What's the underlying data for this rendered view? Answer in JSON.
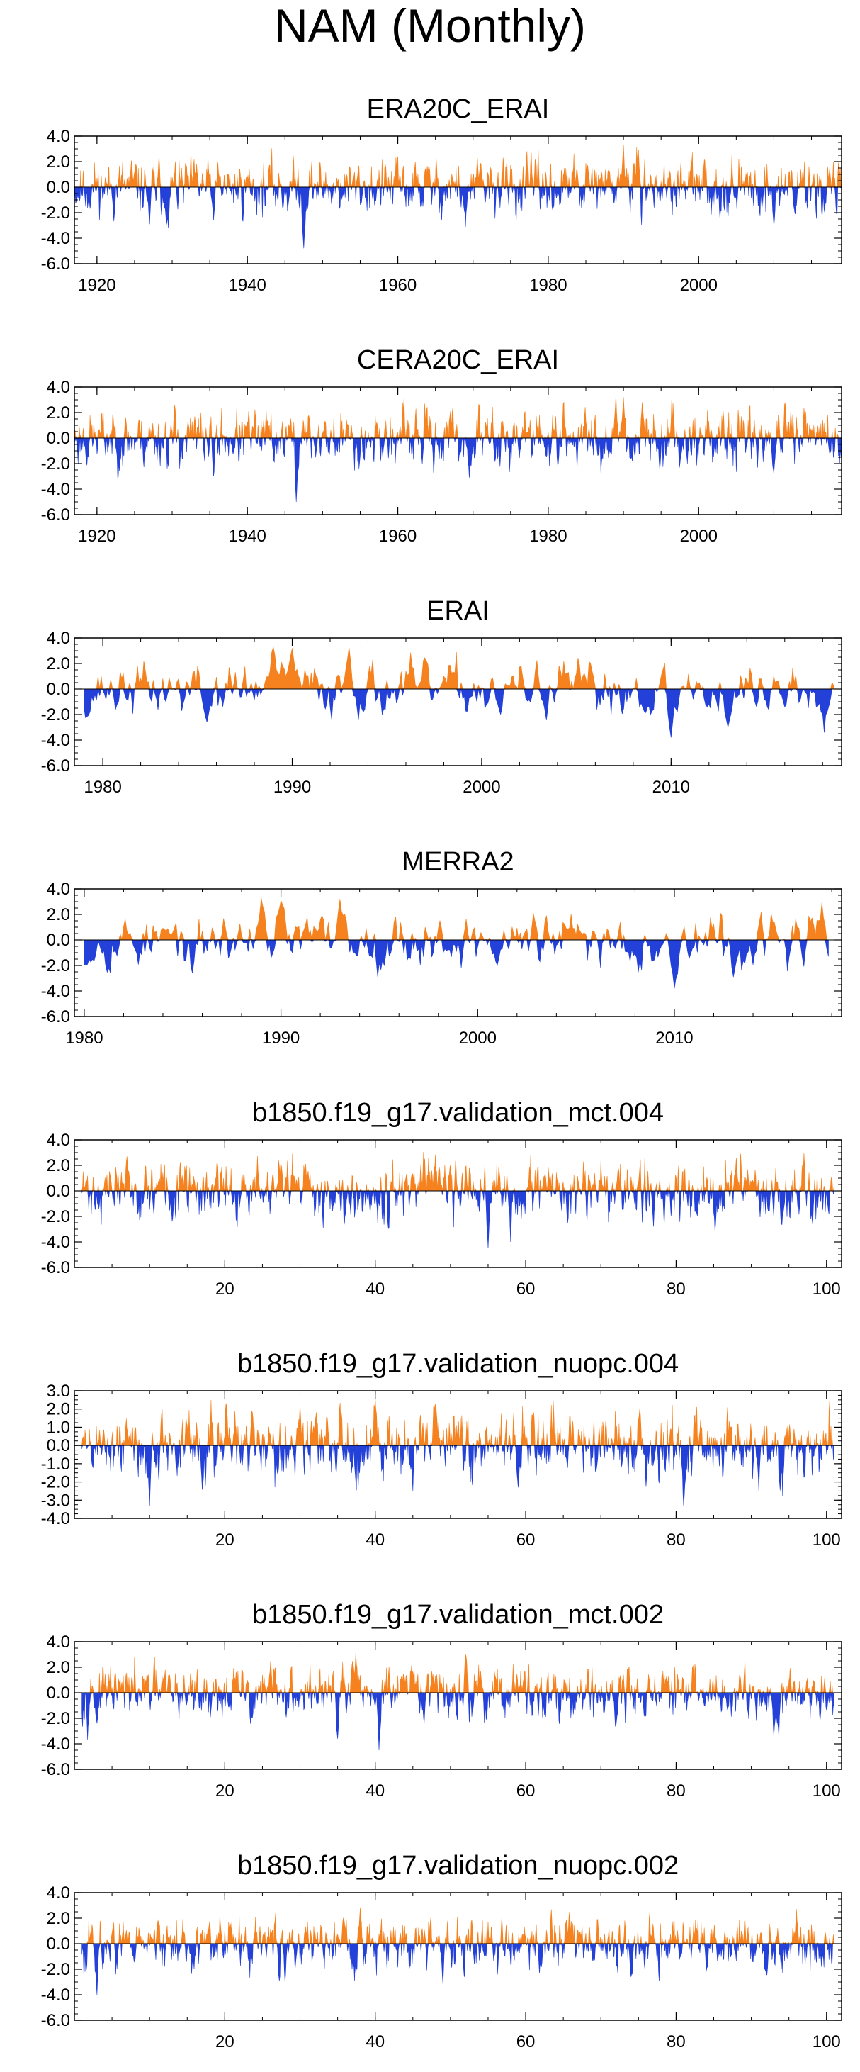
{
  "title": "NAM (Monthly)",
  "colors": {
    "positive": "#f5821f",
    "negative": "#2340d8",
    "axis": "#000000"
  },
  "chart_data": [
    {
      "type": "bar",
      "title": "ERA20C_ERAI",
      "xlim": [
        1917,
        2019
      ],
      "ylim": [
        -6,
        4
      ],
      "yticks": [
        4,
        2,
        0,
        -2,
        -4,
        -6
      ],
      "ytick_labels": [
        "4.0",
        "2.0",
        "0.0",
        "-2.0",
        "-4.0",
        "-6.0"
      ],
      "xticks": [
        1920,
        1940,
        1960,
        1980,
        2000
      ],
      "xtick_labels": [
        "1920",
        "1940",
        "1960",
        "1980",
        "2000"
      ],
      "x_start": 1917,
      "x_end": 2019,
      "monthly": true,
      "seed": 11,
      "amp": 0.9,
      "peaks": [
        [
          1990,
          3.3
        ],
        [
          1992,
          2.9
        ],
        [
          1929.5,
          -3.2
        ],
        [
          1947.5,
          -4.8
        ],
        [
          1969,
          -3.1
        ],
        [
          2010,
          -3.0
        ],
        [
          1927,
          -2.9
        ],
        [
          1935.5,
          -2.6
        ]
      ]
    },
    {
      "type": "bar",
      "title": "CERA20C_ERAI",
      "xlim": [
        1917,
        2019
      ],
      "ylim": [
        -6,
        4
      ],
      "yticks": [
        4,
        2,
        0,
        -2,
        -4,
        -6
      ],
      "ytick_labels": [
        "4.0",
        "2.0",
        "0.0",
        "-2.0",
        "-4.0",
        "-6.0"
      ],
      "xticks": [
        1920,
        1940,
        1960,
        1980,
        2000
      ],
      "xtick_labels": [
        "1920",
        "1940",
        "1960",
        "1980",
        "2000"
      ],
      "x_start": 1917,
      "x_end": 2019,
      "monthly": true,
      "seed": 23,
      "amp": 0.9,
      "peaks": [
        [
          1989,
          3.4
        ],
        [
          1990,
          3.2
        ],
        [
          1992.5,
          2.8
        ],
        [
          1935.5,
          -3.0
        ],
        [
          1946.5,
          -5.0
        ],
        [
          1969.5,
          -3.1
        ],
        [
          2010,
          -2.8
        ]
      ]
    },
    {
      "type": "bar",
      "title": "ERAI",
      "xlim": [
        1978.5,
        2019
      ],
      "ylim": [
        -6,
        4
      ],
      "yticks": [
        4,
        2,
        0,
        -2,
        -4,
        -6
      ],
      "ytick_labels": [
        "4.0",
        "2.0",
        "0.0",
        "-2.0",
        "-4.0",
        "-6.0"
      ],
      "xticks": [
        1980,
        1990,
        2000,
        2010
      ],
      "xtick_labels": [
        "1980",
        "1990",
        "2000",
        "2010"
      ],
      "x_start": 1979,
      "x_end": 2018.6,
      "monthly": true,
      "seed": 37,
      "amp": 0.85,
      "peaks": [
        [
          1989,
          3.3
        ],
        [
          1990,
          3.2
        ],
        [
          1993,
          3.3
        ],
        [
          1985.5,
          -2.6
        ],
        [
          2010,
          -3.8
        ],
        [
          2013,
          -3.0
        ],
        [
          2001,
          -2.0
        ],
        [
          1979.2,
          -2.2
        ]
      ]
    },
    {
      "type": "bar",
      "title": "MERRA2",
      "xlim": [
        1979.5,
        2018.5
      ],
      "ylim": [
        -6,
        4
      ],
      "yticks": [
        4,
        2,
        0,
        -2,
        -4,
        -6
      ],
      "ytick_labels": [
        "4.0",
        "2.0",
        "0.0",
        "-2.0",
        "-4.0",
        "-6.0"
      ],
      "xticks": [
        1980,
        1990,
        2000,
        2010
      ],
      "xtick_labels": [
        "1980",
        "1990",
        "2000",
        "2010"
      ],
      "x_start": 1980,
      "x_end": 2017.8,
      "monthly": true,
      "seed": 53,
      "amp": 0.85,
      "peaks": [
        [
          1989,
          3.3
        ],
        [
          1990,
          3.1
        ],
        [
          1993,
          3.2
        ],
        [
          1985.5,
          -2.6
        ],
        [
          2010,
          -3.8
        ],
        [
          2013,
          -2.9
        ],
        [
          2001,
          -2.0
        ],
        [
          1980.1,
          -2.0
        ]
      ]
    },
    {
      "type": "bar",
      "title": "b1850.f19_g17.validation_mct.004",
      "xlim": [
        0,
        102
      ],
      "ylim": [
        -6,
        4
      ],
      "yticks": [
        4,
        2,
        0,
        -2,
        -4,
        -6
      ],
      "ytick_labels": [
        "4.0",
        "2.0",
        "0.0",
        "-2.0",
        "-4.0",
        "-6.0"
      ],
      "xticks": [
        20,
        40,
        60,
        80,
        100
      ],
      "xtick_labels": [
        "20",
        "40",
        "60",
        "80",
        "100"
      ],
      "x_start": 1,
      "x_end": 101,
      "monthly": true,
      "seed": 71,
      "amp": 0.9,
      "peaks": [
        [
          48,
          2.8
        ],
        [
          7,
          2.7
        ],
        [
          88,
          2.6
        ],
        [
          55,
          -4.5
        ],
        [
          58,
          -4.0
        ],
        [
          13,
          -2.4
        ],
        [
          77,
          -2.8
        ],
        [
          94,
          -2.6
        ]
      ]
    },
    {
      "type": "bar",
      "title": "b1850.f19_g17.validation_nuopc.004",
      "xlim": [
        0,
        102
      ],
      "ylim": [
        -4,
        3
      ],
      "yticks": [
        3,
        2,
        1,
        0,
        -1,
        -2,
        -3,
        -4
      ],
      "ytick_labels": [
        "3.0",
        "2.0",
        "1.0",
        "0.0",
        "-1.0",
        "-2.0",
        "-3.0",
        "-4.0"
      ],
      "xticks": [
        20,
        40,
        60,
        80,
        100
      ],
      "xtick_labels": [
        "20",
        "40",
        "60",
        "80",
        "100"
      ],
      "x_start": 1,
      "x_end": 101,
      "monthly": true,
      "seed": 89,
      "amp": 0.75,
      "peaks": [
        [
          40,
          2.6
        ],
        [
          48,
          2.3
        ],
        [
          30,
          2.2
        ],
        [
          10,
          -3.3
        ],
        [
          81,
          -3.3
        ],
        [
          45,
          -2.5
        ],
        [
          59,
          -2.3
        ],
        [
          91,
          -2.5
        ]
      ]
    },
    {
      "type": "bar",
      "title": "b1850.f19_g17.validation_mct.002",
      "xlim": [
        0,
        102
      ],
      "ylim": [
        -6,
        4
      ],
      "yticks": [
        4,
        2,
        0,
        -2,
        -4,
        -6
      ],
      "ytick_labels": [
        "4.0",
        "2.0",
        "0.0",
        "-2.0",
        "-4.0",
        "-6.0"
      ],
      "xticks": [
        20,
        40,
        60,
        80,
        100
      ],
      "xtick_labels": [
        "20",
        "40",
        "60",
        "80",
        "100"
      ],
      "x_start": 1,
      "x_end": 101,
      "monthly": true,
      "seed": 97,
      "amp": 0.85,
      "peaks": [
        [
          52,
          3.0
        ],
        [
          37,
          2.5
        ],
        [
          40.5,
          -4.5
        ],
        [
          35,
          -3.6
        ],
        [
          93,
          -3.4
        ],
        [
          3,
          -2.4
        ],
        [
          72,
          -2.6
        ]
      ]
    },
    {
      "type": "bar",
      "title": "b1850.f19_g17.validation_nuopc.002",
      "xlim": [
        0,
        102
      ],
      "ylim": [
        -6,
        4
      ],
      "yticks": [
        4,
        2,
        0,
        -2,
        -4,
        -6
      ],
      "ytick_labels": [
        "4.0",
        "2.0",
        "0.0",
        "-2.0",
        "-4.0",
        "-6.0"
      ],
      "xticks": [
        20,
        40,
        60,
        80,
        100
      ],
      "xtick_labels": [
        "20",
        "40",
        "60",
        "80",
        "100"
      ],
      "x_start": 1,
      "x_end": 101,
      "monthly": true,
      "seed": 113,
      "amp": 0.85,
      "peaks": [
        [
          38,
          2.8
        ],
        [
          96,
          2.7
        ],
        [
          3,
          -4.0
        ],
        [
          28,
          -3.0
        ],
        [
          49,
          -3.2
        ],
        [
          74,
          -2.6
        ],
        [
          92,
          -2.4
        ]
      ]
    }
  ]
}
